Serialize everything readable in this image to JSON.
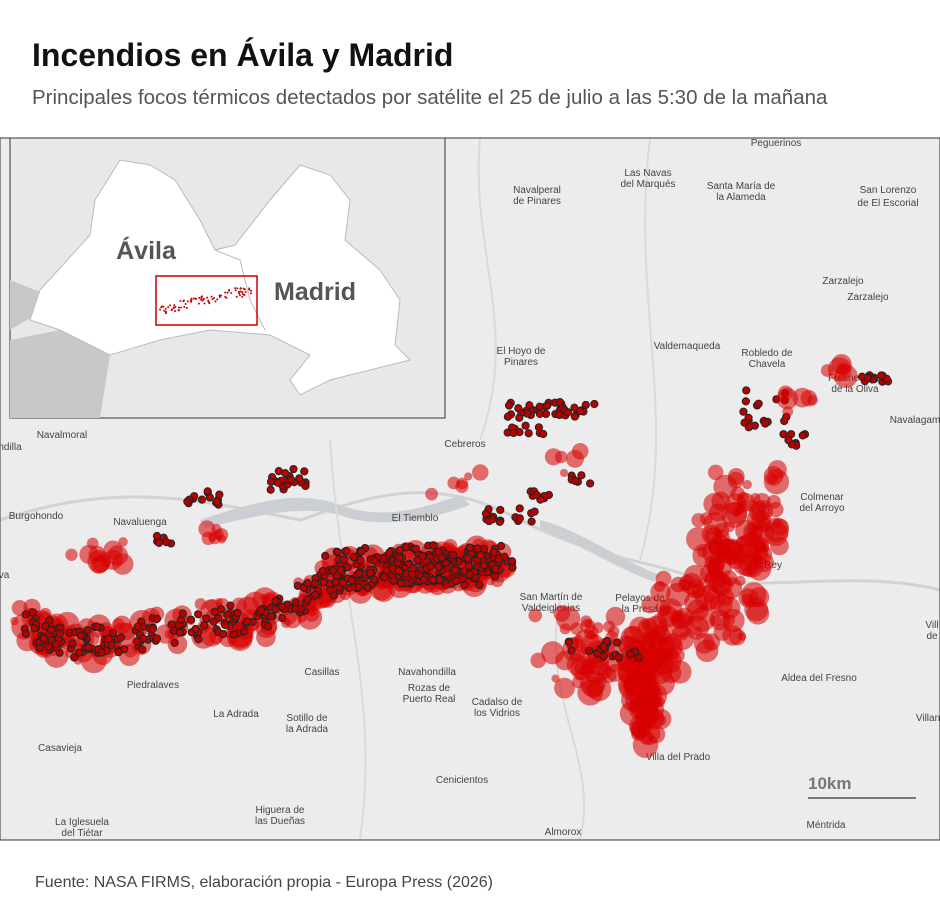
{
  "header": {
    "title": "Incendios en Ávila y Madrid",
    "subtitle": "Principales focos térmicos detectados por satélite el 25 de julio a las 5:30 de la mañana"
  },
  "inset": {
    "labels": [
      "Ávila",
      "Madrid"
    ]
  },
  "map": {
    "places": [
      [
        "Peguerinos"
      ],
      [
        "Las Navas",
        "del Marqués"
      ],
      [
        "Navalperal",
        "de Pinares"
      ],
      [
        "Santa María de",
        "la Alameda"
      ],
      [
        "San Lorenzo",
        "de El Escorial"
      ],
      [
        "Zarzalejo"
      ],
      [
        "Zarzalejo"
      ],
      [
        "El Hoyo de",
        "Pinares"
      ],
      [
        "Valdemaqueda"
      ],
      [
        "Robledo de",
        "Chavela"
      ],
      [
        "Fresnedillas",
        "de la Oliva"
      ],
      [
        "Navalagam"
      ],
      [
        "Navalmoral"
      ],
      [
        "Cebreros"
      ],
      [
        "ndilla"
      ],
      [
        "Burgohondo"
      ],
      [
        "Navaluenga"
      ],
      [
        "El Tiemblo"
      ],
      [
        "Colmenar",
        "del Arroyo"
      ],
      [
        "del Rey"
      ],
      [
        "San Martín de",
        "Valdeiglesias"
      ],
      [
        "Pelayos de",
        "la Presa"
      ],
      [
        "Vill",
        "de"
      ],
      [
        "Casillas"
      ],
      [
        "Navahondilla"
      ],
      [
        "Aldea del Fresno"
      ],
      [
        "Piedralaves"
      ],
      [
        "Rozas de",
        "Puerto Real"
      ],
      [
        "Cadalso de",
        "los Vidrios"
      ],
      [
        "La Adrada"
      ],
      [
        "Sotillo de",
        "la Adrada"
      ],
      [
        "Villan"
      ],
      [
        "Casavieja"
      ],
      [
        "Villa del Prado"
      ],
      [
        "Cenicientos"
      ],
      [
        "Higuera de",
        "las Dueñas"
      ],
      [
        "La Iglesuela",
        "del Tiétar"
      ],
      [
        "Almorox"
      ],
      [
        "Méntrida"
      ],
      [
        "va"
      ]
    ],
    "scale": "10km"
  },
  "footer": {
    "source": "Fuente: NASA FIRMS, elaboración propia - Europa Press (2026)"
  }
}
